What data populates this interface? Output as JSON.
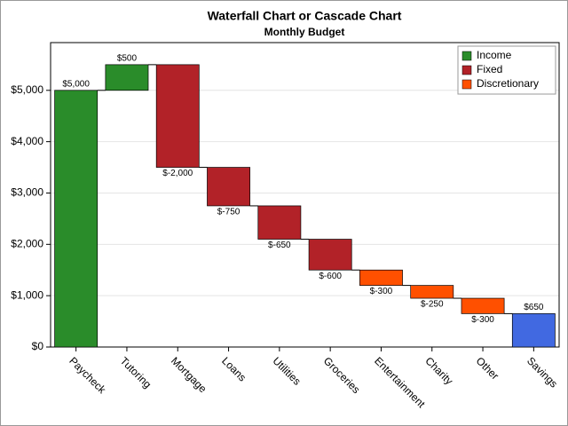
{
  "chart_data": {
    "type": "waterfall",
    "title": "Waterfall Chart or Cascade Chart",
    "subtitle": "Monthly Budget",
    "categories": [
      "Paycheck",
      "Tutoring",
      "Mortgage",
      "Loans",
      "Utilities",
      "Groceries",
      "Entertainment",
      "Charity",
      "Other",
      "Savings"
    ],
    "values": [
      5000,
      500,
      -2000,
      -750,
      -650,
      -600,
      -300,
      -250,
      -300,
      650
    ],
    "value_labels": [
      "$5,000",
      "$500",
      "$-2,000",
      "$-750",
      "$-650",
      "$-600",
      "$-300",
      "$-250",
      "$-300",
      "$650"
    ],
    "colors": [
      "#2a8c2a",
      "#2a8c2a",
      "#b22228",
      "#b22228",
      "#b22228",
      "#b22228",
      "#ff5000",
      "#ff5000",
      "#ff5000",
      "#4169e1"
    ],
    "last_is_total": true,
    "legend": [
      {
        "name": "Income",
        "color": "#2a8c2a"
      },
      {
        "name": "Fixed",
        "color": "#b22228"
      },
      {
        "name": "Discretionary",
        "color": "#ff5000"
      }
    ],
    "legend_position": "top-right",
    "ylim": [
      0,
      5930
    ],
    "yticks": [
      {
        "value": 0,
        "label": "$0"
      },
      {
        "value": 1000,
        "label": "$1,000"
      },
      {
        "value": 2000,
        "label": "$2,000"
      },
      {
        "value": 3000,
        "label": "$3,000"
      },
      {
        "value": 4000,
        "label": "$4,000"
      },
      {
        "value": 5000,
        "label": "$5,000"
      }
    ],
    "grid": true
  }
}
